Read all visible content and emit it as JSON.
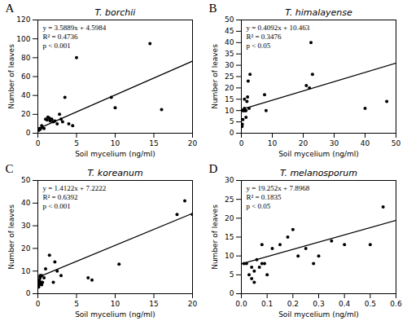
{
  "chart_data": [
    {
      "type": "scatter",
      "title": "T. borchii",
      "annotations": [
        "A",
        "y = 3.5889x + 4.5984",
        "R² = 0.4736",
        "p < 0.001"
      ],
      "xlabel": "Soil mycelium (ng/ml)",
      "ylabel": "Number of leaves",
      "xlim": [
        0,
        20
      ],
      "ylim": [
        0,
        120
      ],
      "xticks": [
        0,
        5,
        10,
        15,
        20
      ],
      "yticks": [
        0,
        20,
        40,
        60,
        80,
        100,
        120
      ],
      "series": [
        {
          "type": "scatter",
          "color": "black",
          "x": [
            0.1,
            0.2,
            0.3,
            0.5,
            0.6,
            0.8,
            1.0,
            1.2,
            1.3,
            1.5,
            1.6,
            1.8,
            2.0,
            2.2,
            2.5,
            2.8,
            3.0,
            3.2,
            3.5,
            4.0,
            4.5,
            5.0,
            9.5,
            10.0,
            14.5,
            16.0
          ],
          "values": [
            3,
            5,
            4,
            8,
            6,
            5,
            15,
            14,
            17,
            16,
            13,
            15,
            12,
            13,
            10,
            20,
            15,
            12,
            38,
            10,
            8,
            80,
            38,
            27,
            95,
            25
          ]
        },
        {
          "type": "line",
          "color": "black",
          "x": [
            0,
            20
          ],
          "values": [
            4.5984,
            76.3764
          ]
        }
      ]
    },
    {
      "type": "scatter",
      "title": "T. himalayense",
      "annotations": [
        "B",
        "y = 0.4092x + 10.463",
        "R² = 0.3476",
        "p < 0.05"
      ],
      "xlabel": "Soil mycelium (ng/ml)",
      "ylabel": "Number of leaves",
      "xlim": [
        0,
        50
      ],
      "ylim": [
        0,
        50
      ],
      "xticks": [
        0,
        10,
        20,
        30,
        40,
        50
      ],
      "yticks": [
        0,
        5,
        10,
        15,
        20,
        25,
        30,
        35,
        40,
        45,
        50
      ],
      "series": [
        {
          "type": "scatter",
          "color": "black",
          "x": [
            0.2,
            0.3,
            0.5,
            0.5,
            0.8,
            1.0,
            1.0,
            1.2,
            1.5,
            1.5,
            1.8,
            2.0,
            2.2,
            2.5,
            2.8,
            7.5,
            8.0,
            21.0,
            22.0,
            22.5,
            23.0,
            40.0,
            47.0
          ],
          "values": [
            3,
            4,
            10,
            6,
            10,
            11,
            15,
            10,
            10,
            7,
            14,
            16,
            23,
            11,
            26,
            17,
            10,
            21,
            20,
            40,
            26,
            11,
            14
          ]
        },
        {
          "type": "line",
          "color": "black",
          "x": [
            0,
            50
          ],
          "values": [
            10.463,
            30.923
          ]
        }
      ]
    },
    {
      "type": "scatter",
      "title": "T. koreanum",
      "annotations": [
        "C",
        "y = 1.4122x + 7.2222",
        "R² = 0.6392",
        "p < 0.001"
      ],
      "xlabel": "Soil mycelium (ng/ml)",
      "ylabel": "Number of leaves",
      "xlim": [
        0,
        20
      ],
      "ylim": [
        0,
        50
      ],
      "xticks": [
        0,
        5,
        10,
        15,
        20
      ],
      "yticks": [
        0,
        10,
        20,
        30,
        40,
        50
      ],
      "series": [
        {
          "type": "scatter",
          "color": "black",
          "x": [
            0.1,
            0.1,
            0.2,
            0.2,
            0.3,
            0.3,
            0.4,
            0.5,
            0.5,
            0.6,
            0.8,
            1.0,
            1.5,
            2.0,
            2.2,
            2.5,
            3.0,
            6.5,
            7.0,
            10.5,
            18.0,
            19.0,
            20.0
          ],
          "values": [
            3,
            5,
            4,
            6,
            7,
            8,
            5,
            4,
            8,
            5,
            7,
            11,
            17,
            5,
            14,
            10,
            8,
            7,
            6,
            13,
            35,
            41,
            35
          ]
        },
        {
          "type": "line",
          "color": "black",
          "x": [
            0,
            20
          ],
          "values": [
            7.2222,
            35.4662
          ]
        }
      ]
    },
    {
      "type": "scatter",
      "title": "T. melanosporum",
      "annotations": [
        "D",
        "y = 19.252x + 7.8968",
        "R² = 0.1835",
        "p < 0.05"
      ],
      "xlabel": "Soil mycelium (ng/ml)",
      "ylabel": "Number of leaves",
      "xlim": [
        0,
        0.6
      ],
      "ylim": [
        0,
        30
      ],
      "xticks": [
        {
          "value": 0,
          "label": "0.0"
        },
        0.1,
        0.2,
        0.3,
        0.4,
        0.5,
        0.6
      ],
      "yticks": [
        0,
        5,
        10,
        15,
        20,
        25,
        30
      ],
      "series": [
        {
          "type": "scatter",
          "color": "black",
          "x": [
            0.01,
            0.02,
            0.03,
            0.04,
            0.04,
            0.05,
            0.05,
            0.06,
            0.07,
            0.08,
            0.08,
            0.09,
            0.1,
            0.12,
            0.15,
            0.18,
            0.2,
            0.22,
            0.25,
            0.28,
            0.3,
            0.35,
            0.4,
            0.5,
            0.55
          ],
          "values": [
            8,
            8,
            5,
            7,
            4,
            6,
            3,
            9,
            7,
            13,
            8,
            8,
            5,
            12,
            13,
            15,
            17,
            10,
            12,
            8,
            10,
            14,
            13,
            13,
            23
          ]
        },
        {
          "type": "line",
          "color": "black",
          "x": [
            0,
            0.6
          ],
          "values": [
            7.8968,
            19.448
          ]
        }
      ]
    }
  ]
}
